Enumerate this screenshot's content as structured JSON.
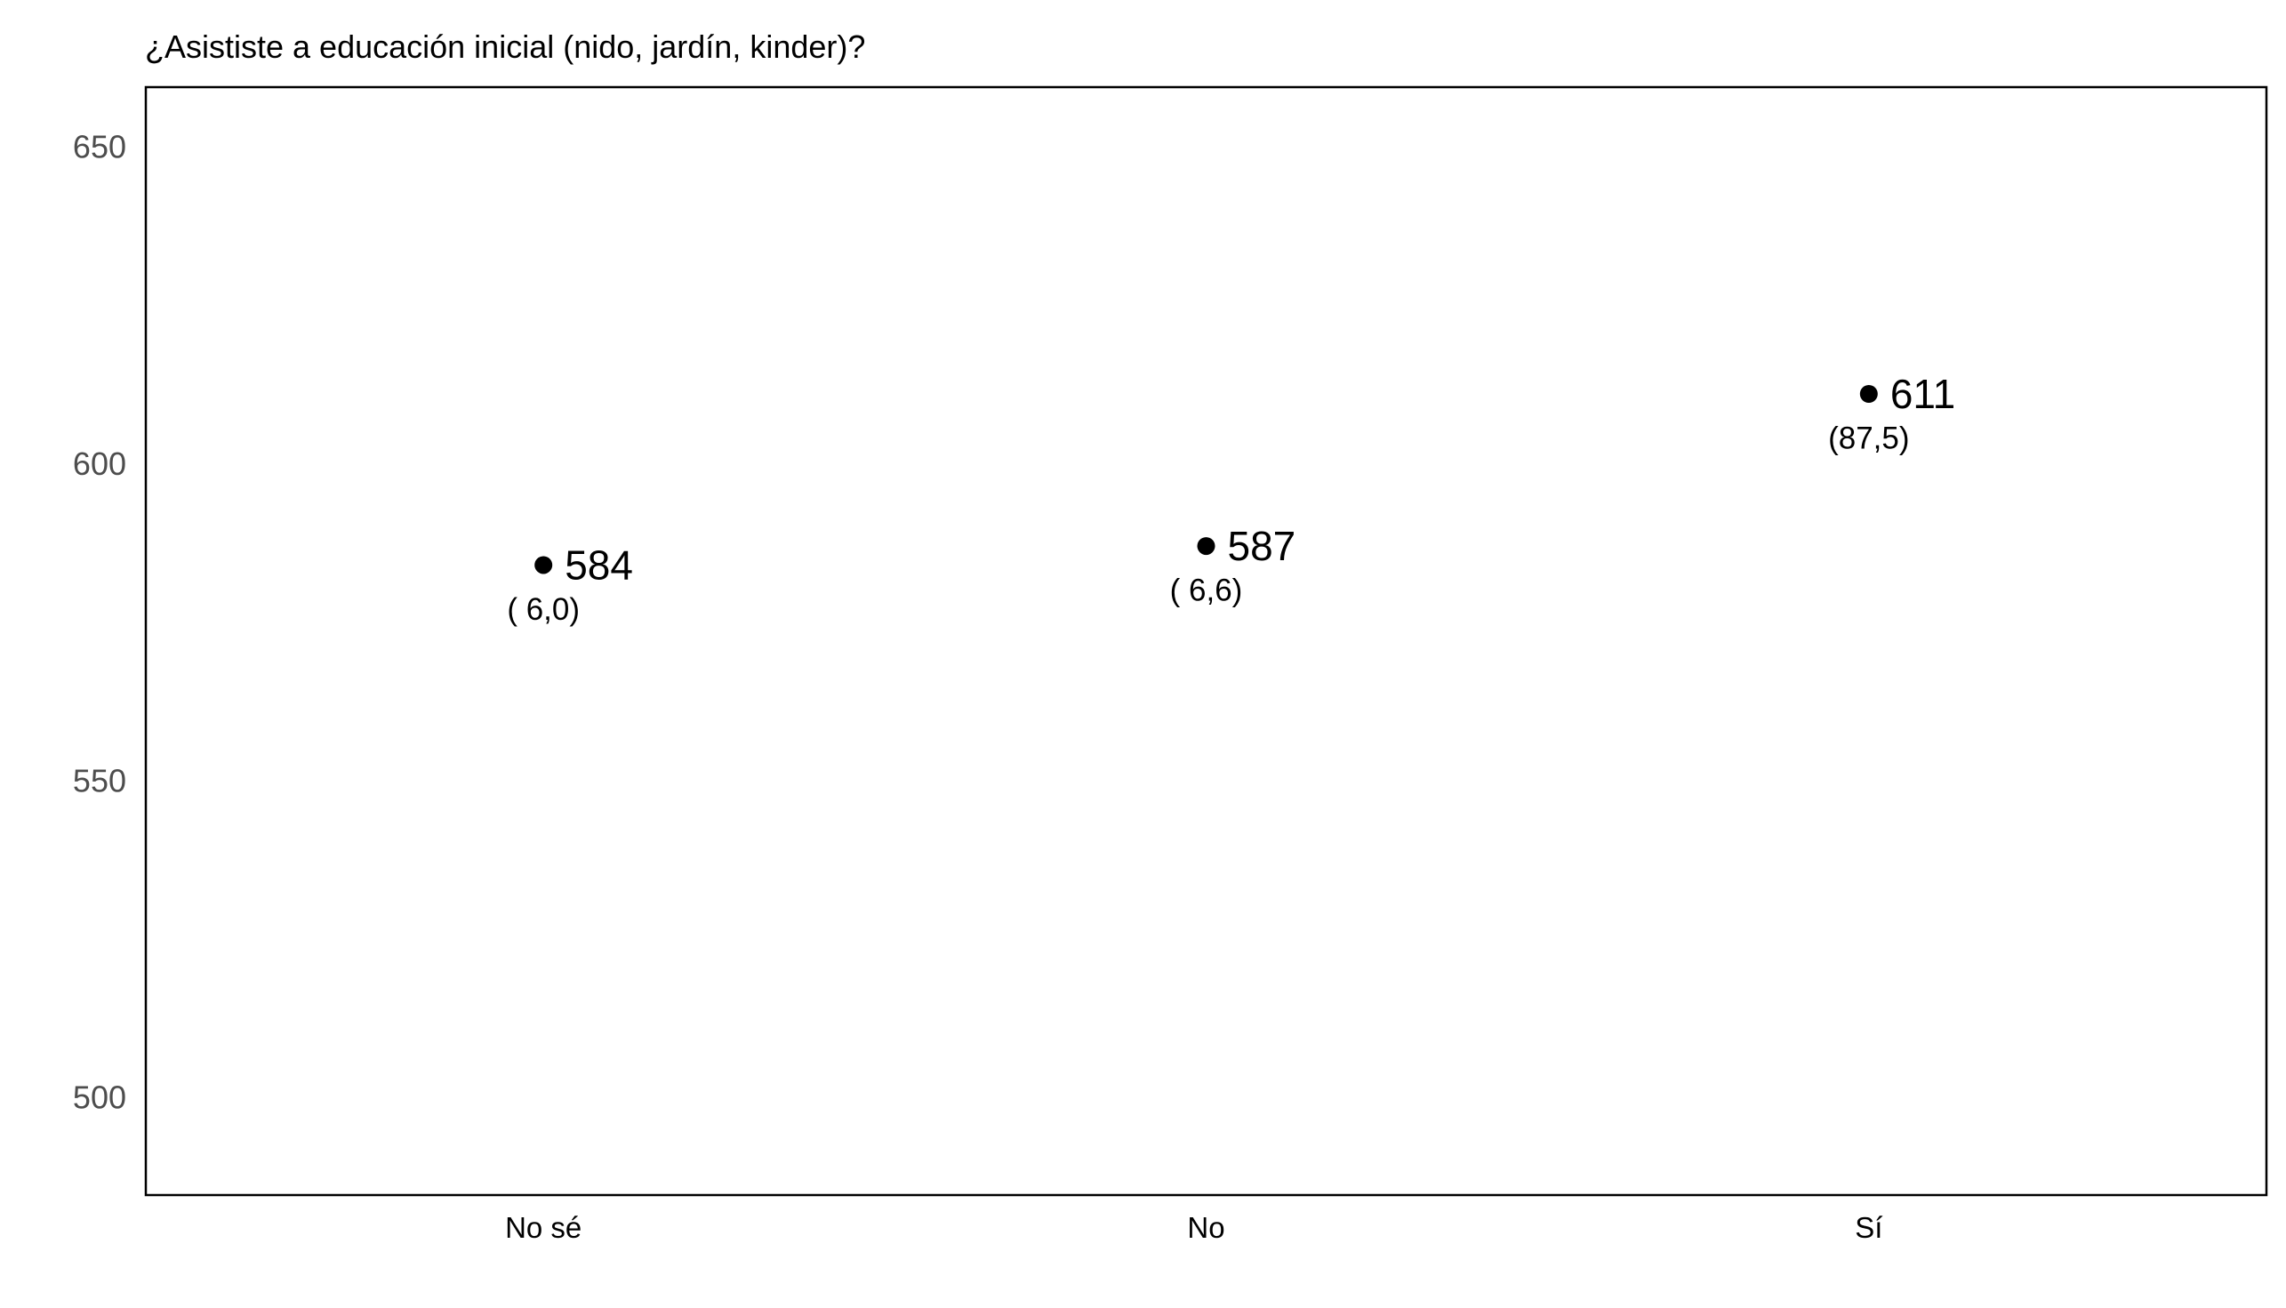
{
  "chart_data": {
    "type": "scatter",
    "title": "¿Asististe a educación inicial (nido, jardín, kinder)?",
    "xlabel": "",
    "ylabel": "",
    "categories": [
      "No sé",
      "No",
      "Sí"
    ],
    "values": [
      584,
      587,
      611
    ],
    "value_labels": [
      "584",
      "587",
      "611"
    ],
    "percent_labels": [
      "( 6,0)",
      "( 6,6)",
      "(87,5)"
    ],
    "ylim": [
      484.6,
      659.4
    ],
    "yticks": [
      500,
      550,
      600,
      650
    ],
    "ytick_labels": [
      "500",
      "550",
      "600",
      "650"
    ],
    "grid": false,
    "legend": "none",
    "colors": {
      "point": "#000000",
      "frame": "#000000",
      "tick_text": "#4d4d4d",
      "background": "#ffffff"
    }
  }
}
